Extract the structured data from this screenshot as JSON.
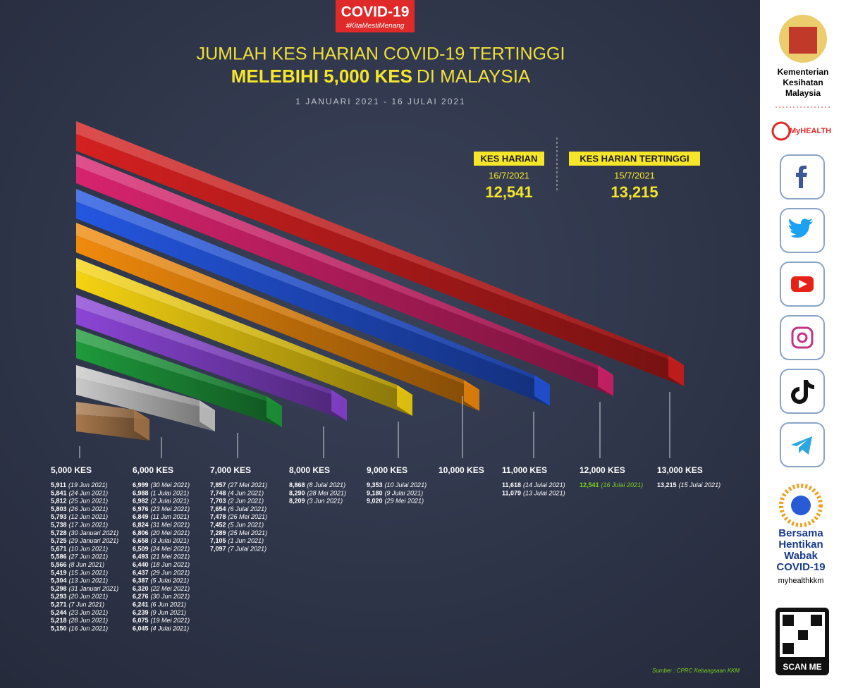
{
  "badge": {
    "title": "COVID-19",
    "hashtag": "#KitaMestiMenang"
  },
  "header": {
    "line1": "JUMLAH KES HARIAN COVID-19 TERTINGGI",
    "line2_bold": "MELEBIHI 5,000 KES",
    "line2_rest": "DI MALAYSIA",
    "period": "1 JANUARI 2021 - 16 JULAI 2021"
  },
  "stats": [
    {
      "label": "KES HARIAN",
      "date": "16/7/2021",
      "value": "12,541"
    },
    {
      "label": "KES HARIAN TERTINGGI",
      "date": "15/7/2021",
      "value": "13,215"
    }
  ],
  "columns": [
    {
      "label": "5,000 KES",
      "color": "#a8784c",
      "entries": [
        {
          "cases": "5,911",
          "date": "(19 Jun 2021)"
        },
        {
          "cases": "5,841",
          "date": "(24 Jun 2021)"
        },
        {
          "cases": "5,812",
          "date": "(25 Jun 2021)"
        },
        {
          "cases": "5,803",
          "date": "(26 Jun 2021)"
        },
        {
          "cases": "5,793",
          "date": "(12 Jun 2021)"
        },
        {
          "cases": "5,738",
          "date": "(17 Jun 2021)"
        },
        {
          "cases": "5,728",
          "date": "(30 Januari 2021)"
        },
        {
          "cases": "5,725",
          "date": "(29 Januari 2021)"
        },
        {
          "cases": "5,671",
          "date": "(10 Jun 2021)"
        },
        {
          "cases": "5,586",
          "date": "(27 Jun 2021)"
        },
        {
          "cases": "5,566",
          "date": "(8 Jun 2021)"
        },
        {
          "cases": "5,419",
          "date": "(15 Jun 2021)"
        },
        {
          "cases": "5,304",
          "date": "(13 Jun 2021)"
        },
        {
          "cases": "5,298",
          "date": "(31 Januari 2021)"
        },
        {
          "cases": "5,293",
          "date": "(20 Jun 2021)"
        },
        {
          "cases": "5,271",
          "date": "(7 Jun 2021)"
        },
        {
          "cases": "5,244",
          "date": "(23 Jun 2021)"
        },
        {
          "cases": "5,218",
          "date": "(28 Jun 2021)"
        },
        {
          "cases": "5,150",
          "date": "(16 Jun 2021)"
        }
      ]
    },
    {
      "label": "6,000 KES",
      "color": "#c9c9c9",
      "entries": [
        {
          "cases": "6,999",
          "date": "(30 Mei 2021)"
        },
        {
          "cases": "6,988",
          "date": "(1 Julai 2021)"
        },
        {
          "cases": "6,982",
          "date": "(2 Julai 2021)"
        },
        {
          "cases": "6,976",
          "date": "(23 Mei 2021)"
        },
        {
          "cases": "6,849",
          "date": "(11 Jun 2021)"
        },
        {
          "cases": "6,824",
          "date": "(31 Mei 2021)"
        },
        {
          "cases": "6,806",
          "date": "(20 Mei 2021)"
        },
        {
          "cases": "6,658",
          "date": "(3 Julai 2021)"
        },
        {
          "cases": "6,509",
          "date": "(24 Mei 2021)"
        },
        {
          "cases": "6,493",
          "date": "(21 Mei 2021)"
        },
        {
          "cases": "6,440",
          "date": "(18 Jun 2021)"
        },
        {
          "cases": "6,437",
          "date": "(29 Jun 2021)"
        },
        {
          "cases": "6,387",
          "date": "(5 Julai 2021)"
        },
        {
          "cases": "6,320",
          "date": "(22 Mei 2021)"
        },
        {
          "cases": "6,276",
          "date": "(30 Jun 2021)"
        },
        {
          "cases": "6,241",
          "date": "(6 Jun 2021)"
        },
        {
          "cases": "6,239",
          "date": "(9 Jun 2021)"
        },
        {
          "cases": "6,075",
          "date": "(19 Mei 2021)"
        },
        {
          "cases": "6,045",
          "date": "(4 Julai 2021)"
        }
      ]
    },
    {
      "label": "7,000 KES",
      "color": "#1f9a3c",
      "entries": [
        {
          "cases": "7,857",
          "date": "(27 Mei 2021)"
        },
        {
          "cases": "7,748",
          "date": "(4 Jun 2021)"
        },
        {
          "cases": "7,703",
          "date": "(2 Jun 2021)"
        },
        {
          "cases": "7,654",
          "date": "(6 Julai 2021)"
        },
        {
          "cases": "7,478",
          "date": "(26 Mei 2021)"
        },
        {
          "cases": "7,452",
          "date": "(5 Jun 2021)"
        },
        {
          "cases": "7,289",
          "date": "(25 Mei 2021)"
        },
        {
          "cases": "7,105",
          "date": "(1 Jun 2021)"
        },
        {
          "cases": "7,097",
          "date": "(7 Julai 2021)"
        }
      ]
    },
    {
      "label": "8,000 KES",
      "color": "#8b45d6",
      "entries": [
        {
          "cases": "8,868",
          "date": "(8 Julai 2021)"
        },
        {
          "cases": "8,290",
          "date": "(28 Mei 2021)"
        },
        {
          "cases": "8,209",
          "date": "(3 Jun 2021)"
        }
      ]
    },
    {
      "label": "9,000 KES",
      "color": "#f5d312",
      "entries": [
        {
          "cases": "9,353",
          "date": "(10 Julai 2021)"
        },
        {
          "cases": "9,180",
          "date": "(9 Julai 2021)"
        },
        {
          "cases": "9,020",
          "date": "(29 Mei 2021)"
        }
      ]
    },
    {
      "label": "10,000 KES",
      "color": "#f08a0c",
      "entries": []
    },
    {
      "label": "11,000 KES",
      "color": "#2456e0",
      "entries": [
        {
          "cases": "11,618",
          "date": "(14 Julai 2021)"
        },
        {
          "cases": "11,079",
          "date": "(13 Julai 2021)"
        }
      ]
    },
    {
      "label": "12,000 KES",
      "color": "#d8236e",
      "entries": [
        {
          "cases": "12,541",
          "date": "(16 Julai 2021)",
          "color": "#7dd321"
        }
      ]
    },
    {
      "label": "13,000 KES",
      "color": "#d42020",
      "entries": [
        {
          "cases": "13,215",
          "date": "(15 Julai 2021)"
        }
      ]
    }
  ],
  "source": "Sumber : CPRC Kebangsaan KKM",
  "sidebar": {
    "ministry": [
      "Kementerian",
      "Kesihatan",
      "Malaysia"
    ],
    "myhealth": "MyHEALTH",
    "campaign": [
      "Bersama",
      "Hentikan",
      "Wabak",
      "COVID-19"
    ],
    "handle": "myhealthkkm",
    "scan": "SCAN ME"
  }
}
